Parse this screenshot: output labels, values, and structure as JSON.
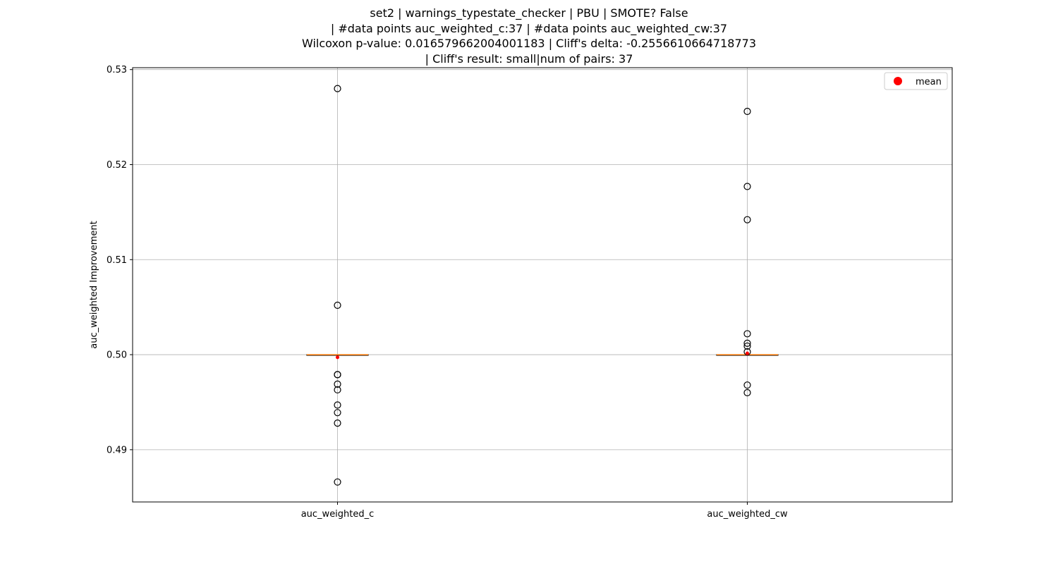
{
  "chart_data": {
    "type": "box",
    "title_lines": [
      "set2 | warnings_typestate_checker | PBU | SMOTE? False",
      "| #data points auc_weighted_c:37 | #data points auc_weighted_cw:37",
      "Wilcoxon p-value: 0.016579662004001183 | Cliff's delta: -0.2556610664718773",
      "| Cliff's result: small|num of pairs: 37"
    ],
    "ylabel": "auc_weighted Improvement",
    "xlabel": "",
    "ylim": [
      0.4845,
      0.5302
    ],
    "yticks": [
      0.49,
      0.5,
      0.51,
      0.52,
      0.53
    ],
    "ytick_labels": [
      "0.49",
      "0.50",
      "0.51",
      "0.52",
      "0.53"
    ],
    "grid": true,
    "legend": {
      "placement": "top-right",
      "entries": [
        {
          "label": "mean",
          "color": "#ff0000"
        }
      ]
    },
    "colors": {
      "median": "#ff7f0e",
      "mean": "#ff0000",
      "grid": "#b0b0b0",
      "flier": "#000000"
    },
    "categories": [
      "auc_weighted_c",
      "auc_weighted_cw"
    ],
    "boxes": [
      {
        "name": "auc_weighted_c",
        "q1": 0.5,
        "median": 0.5,
        "q3": 0.5,
        "whisker_low": 0.5,
        "whisker_high": 0.5,
        "mean": 0.49972,
        "fliers": [
          0.528,
          0.5052,
          0.4979,
          0.4979,
          0.4969,
          0.4963,
          0.4947,
          0.4939,
          0.4928,
          0.4866
        ]
      },
      {
        "name": "auc_weighted_cw",
        "q1": 0.5,
        "median": 0.5,
        "q3": 0.5,
        "whisker_low": 0.5,
        "whisker_high": 0.5,
        "mean": 0.50014,
        "fliers": [
          0.5256,
          0.5177,
          0.5142,
          0.5022,
          0.5012,
          0.5009,
          0.5003,
          0.4968,
          0.496
        ]
      }
    ]
  }
}
